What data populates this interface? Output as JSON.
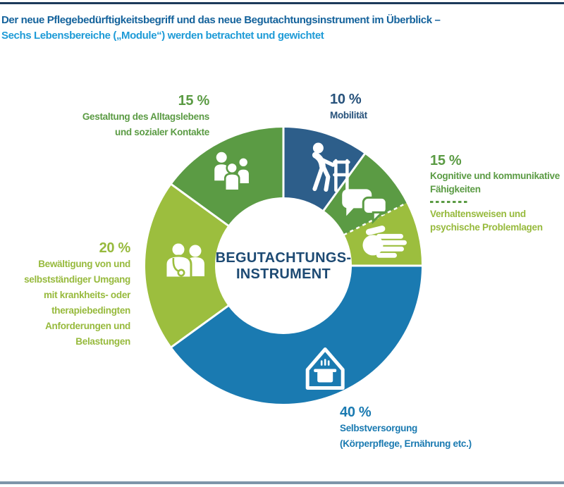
{
  "page": {
    "title_line1": "Der neue Pflegebedürftigkeitsbegriff und das neue Begutachtungsinstrument im Überblick –",
    "title_line2": "Sechs Lebensbereiche („Module“) werden betrachtet und gewichtet",
    "title_color_line1": "#15639c",
    "title_color_line2": "#1e9bd7",
    "top_rule_color": "#1c3a5a",
    "bottom_rule_color": "#7e95a9"
  },
  "center": {
    "line1": "BEGUTACHTUNGS-",
    "line2": "INSTRUMENT",
    "color": "#1d4a73"
  },
  "labels": {
    "alltag": {
      "percent": "15 %",
      "lines": [
        "Gestaltung des Alltagslebens",
        "und sozialer Kontakte"
      ],
      "color": "#5b9b44"
    },
    "mobilitaet": {
      "percent": "10 %",
      "lines": [
        "Mobilität"
      ],
      "color": "#27527b"
    },
    "kognitiv": {
      "percent": "15 %",
      "lines": [
        "Kognitive und kommunikative",
        "Fähigkeiten"
      ],
      "lines2": [
        "Verhaltensweisen und",
        "psychische Problemlagen"
      ],
      "color": "#5b9b44",
      "color2": "#97ba3d"
    },
    "bewaeltigung": {
      "percent": "20 %",
      "lines": [
        "Bewältigung von und",
        "selbstständiger Umgang",
        "mit krankheits- oder",
        "therapiebedingten",
        "Anforderungen und",
        "Belastungen"
      ],
      "color": "#97ba3d"
    },
    "selbstversorgung": {
      "percent": "40 %",
      "lines": [
        "Selbstversorgung",
        "(Körperpflege, Ernährung etc.)"
      ],
      "color": "#1a7ab1"
    }
  },
  "chart_data": {
    "type": "pie",
    "subtype": "donut",
    "direction": "clockwise",
    "start_angle_deg": 0,
    "inner_radius_ratio": 0.5,
    "center_label_lines": [
      "BEGUTACHTUNGS-",
      "INSTRUMENT"
    ],
    "percent_groups": [
      {
        "percent_label": "15 %",
        "segment_ids": [
          "kognitiv",
          "verhalten"
        ]
      }
    ],
    "segments": [
      {
        "id": "mobilitaet",
        "value": 10,
        "percent_label": "10 %",
        "label": "Mobilität",
        "color": "#2d5e8a",
        "icon": "walker-icon",
        "divider_before": "solid",
        "icon_radius": 150,
        "icon_angle_offset": 7
      },
      {
        "id": "kognitiv",
        "value": 7.5,
        "percent_label": "15 %",
        "label": "Kognitive und kommunikative Fähigkeiten",
        "color": "#5b9b44",
        "icon": "speech-bubbles-icon",
        "divider_before": "solid",
        "icon_radius": 144,
        "icon_angle_offset": 3
      },
      {
        "id": "verhalten",
        "value": 7.5,
        "label": "Verhaltensweisen und psychische Problemlagen",
        "color": "#9cbe3e",
        "icon": "hand-icon",
        "divider_before": "dashed",
        "icon_radius": 146,
        "icon_angle_offset": 0
      },
      {
        "id": "selbstversorgung",
        "value": 40,
        "percent_label": "40 %",
        "label": "Selbstversorgung (Körperpflege, Ernährung etc.)",
        "color": "#1a7ab1",
        "icon": "house-pot-icon",
        "divider_before": "solid",
        "icon_radius": 158,
        "icon_angle_offset": -4
      },
      {
        "id": "bewaeltigung",
        "value": 20,
        "percent_label": "20 %",
        "label": "Bewältigung von und selbstständiger Umgang mit krankheits- oder therapiebedingten Anforderungen und Belastungen",
        "color": "#9cbe3e",
        "icon": "doctor-patient-icon",
        "divider_before": "solid",
        "icon_radius": 140,
        "icon_angle_offset": 0
      },
      {
        "id": "alltag",
        "value": 15,
        "percent_label": "15 %",
        "label": "Gestaltung des Alltagslebens und sozialer Kontakte",
        "color": "#5b9b44",
        "icon": "people-group-icon",
        "divider_before": "solid",
        "icon_radius": 146,
        "icon_angle_offset": -2
      }
    ]
  }
}
